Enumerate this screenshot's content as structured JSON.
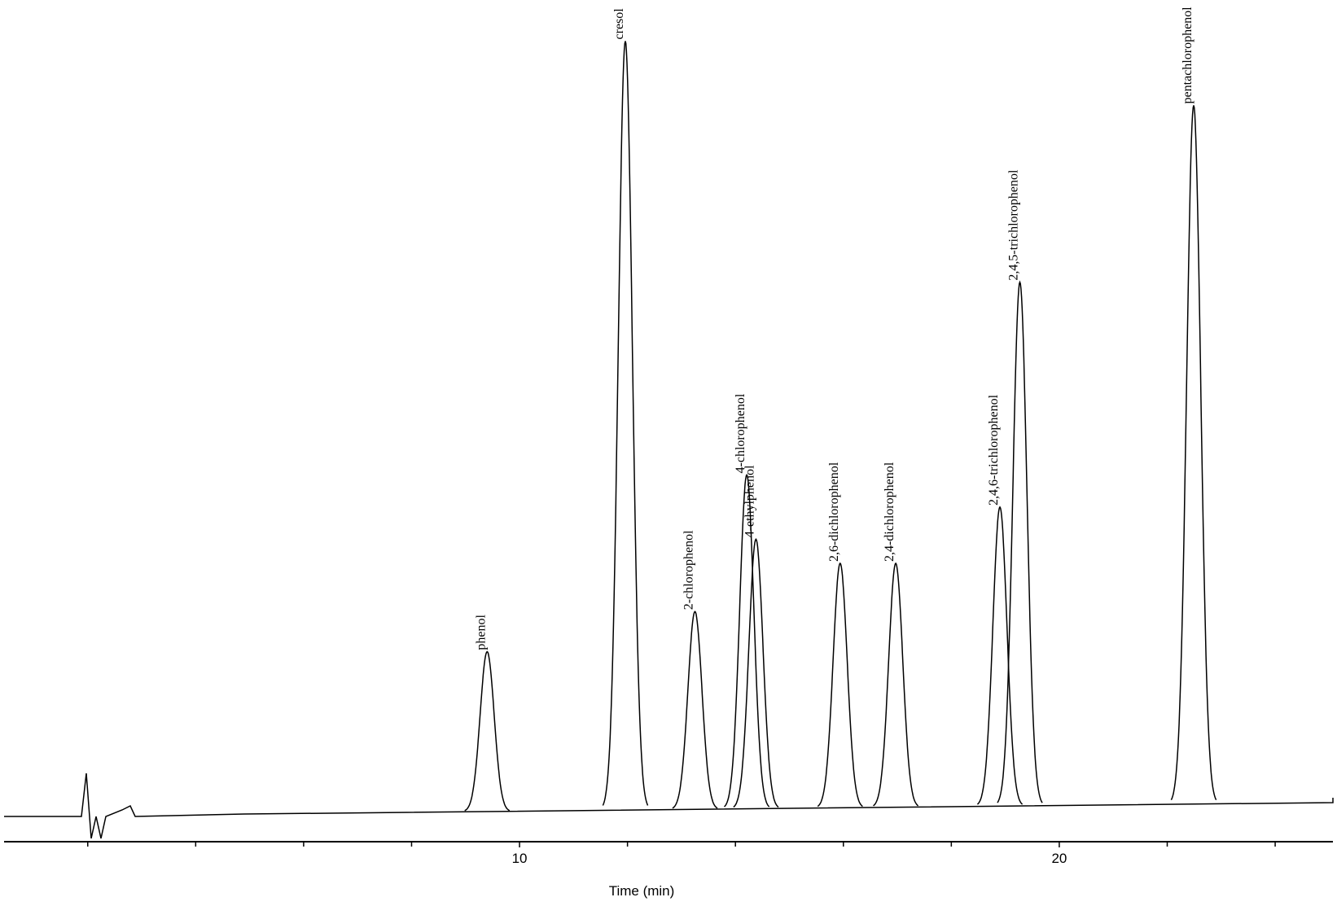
{
  "chart_data": {
    "type": "chromatogram",
    "x_label": "Time (min)",
    "xlim": [
      0.45,
      25.07
    ],
    "xticks": [
      10,
      20
    ],
    "minor_xticks": [
      2,
      4,
      6,
      8,
      12,
      14,
      16,
      18,
      22,
      24
    ],
    "ylim": [
      0,
      100
    ],
    "color": "#000000",
    "peaks": [
      {
        "name": "phenol",
        "x": 9.4,
        "value": 20
      },
      {
        "name": "cresol",
        "x": 11.96,
        "value": 96
      },
      {
        "name": "2-chlorophenol",
        "x": 13.25,
        "value": 25
      },
      {
        "name": "4-chlorophenol",
        "x": 14.21,
        "value": 42
      },
      {
        "name": "4-ethylphenol",
        "x": 14.38,
        "value": 34
      },
      {
        "name": "2,6-dichlorophenol",
        "x": 15.94,
        "value": 31
      },
      {
        "name": "2,4-dichlorophenol",
        "x": 16.97,
        "value": 31
      },
      {
        "name": "2,4,6-trichlorophenol",
        "x": 18.9,
        "value": 38
      },
      {
        "name": "2,4,5-trichlorophenol",
        "x": 19.27,
        "value": 66
      },
      {
        "name": "pentachlorophenol",
        "x": 22.49,
        "value": 88
      }
    ]
  }
}
